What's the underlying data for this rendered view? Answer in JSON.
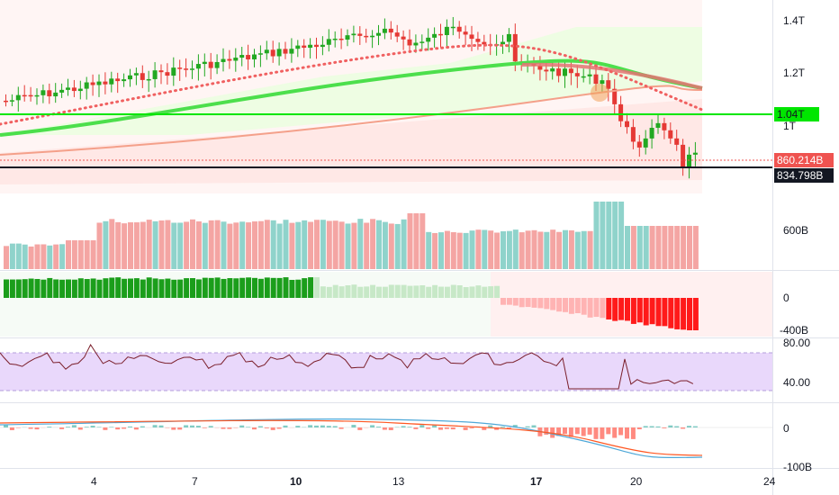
{
  "price_axis": {
    "main": [
      "1.4T",
      "1.2T",
      "1T"
    ],
    "volume": [
      "600B"
    ],
    "flow": [
      "0",
      "-400B"
    ],
    "rsi": [
      "80.00",
      "40.00"
    ],
    "macd": [
      "0",
      "-100B"
    ]
  },
  "tags": {
    "level_line": "1.04T",
    "last_price": "860.214B",
    "support_line": "834.798B"
  },
  "time_axis": [
    "4",
    "7",
    "10",
    "13",
    "17",
    "20",
    "24"
  ],
  "colors": {
    "up": "#26a69a",
    "down": "#ef5350",
    "green_line": "#00e600",
    "ma_green": "#4cdf4c",
    "ma_red": "#e57373",
    "dots": "#f06060",
    "rsi_line": "#7b1f2b",
    "rsi_band": "#e9d8fb",
    "macd_blue": "#4fa8d8",
    "macd_red": "#ff5722"
  },
  "chart_data": {
    "type": "candlestick",
    "x": [
      "4",
      "7",
      "10",
      "13",
      "17",
      "20",
      "24"
    ],
    "ylim": [
      780,
      1450
    ],
    "levels": {
      "horizontal_green": 1040,
      "horizontal_black": 834.8,
      "last": 860.2
    }
  }
}
